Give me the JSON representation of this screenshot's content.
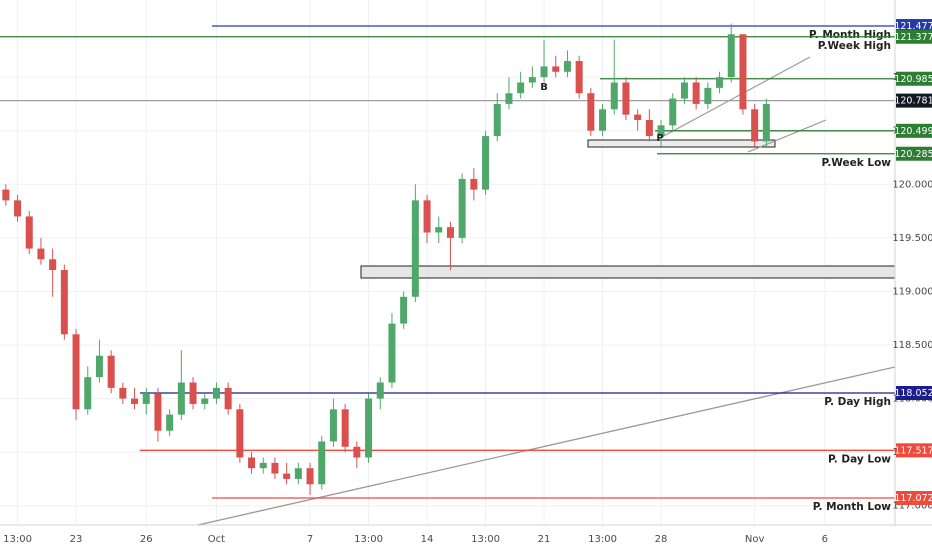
{
  "chart_data": {
    "type": "candlestick",
    "categories": [
      null,
      "13:00",
      null,
      null,
      null,
      null,
      "23",
      null,
      null,
      null,
      null,
      null,
      "26",
      null,
      null,
      null,
      null,
      null,
      "Oct",
      null,
      null,
      null,
      null,
      null,
      null,
      null,
      "7",
      null,
      null,
      null,
      null,
      "13:00",
      null,
      null,
      null,
      null,
      "14",
      null,
      null,
      null,
      null,
      "13:00",
      null,
      null,
      null,
      null,
      "21",
      null,
      null,
      null,
      null,
      "13:00",
      null,
      null,
      null,
      null,
      "28",
      null,
      null,
      null,
      null,
      null,
      null,
      null,
      "Nov",
      null,
      null,
      null,
      null,
      null,
      "6",
      null,
      null,
      null,
      null,
      null
    ],
    "open": [
      119.95,
      119.85,
      119.7,
      119.4,
      119.3,
      119.2,
      118.6,
      117.9,
      118.2,
      118.4,
      118.1,
      118.0,
      117.95,
      118.05,
      117.7,
      117.85,
      118.15,
      117.95,
      118.0,
      118.1,
      117.9,
      117.45,
      117.35,
      117.4,
      117.3,
      117.25,
      117.35,
      117.2,
      117.6,
      117.9,
      117.55,
      117.45,
      118.0,
      118.15,
      118.7,
      118.95,
      119.85,
      119.55,
      119.6,
      119.5,
      120.05,
      119.95,
      120.45,
      120.75,
      120.85,
      120.95,
      121.0,
      121.1,
      121.05,
      121.15,
      120.85,
      120.5,
      120.7,
      120.95,
      120.65,
      120.6,
      120.45,
      120.55,
      120.8,
      120.95,
      120.75,
      120.9,
      121.0,
      121.4,
      120.7,
      120.4,
      null,
      null,
      null,
      null,
      null,
      null,
      null,
      null,
      null,
      null
    ],
    "high": [
      120.0,
      119.9,
      119.75,
      119.5,
      119.4,
      119.25,
      118.65,
      118.3,
      118.55,
      118.45,
      118.15,
      118.1,
      118.1,
      118.1,
      117.9,
      118.45,
      118.2,
      118.05,
      118.15,
      118.15,
      117.95,
      117.5,
      117.45,
      117.45,
      117.4,
      117.4,
      117.4,
      117.65,
      118.0,
      117.95,
      117.6,
      118.05,
      118.2,
      118.8,
      119.0,
      120.0,
      119.9,
      119.7,
      119.65,
      120.1,
      120.15,
      120.5,
      120.85,
      121.0,
      121.05,
      121.1,
      121.35,
      121.2,
      121.25,
      121.2,
      120.9,
      120.75,
      121.35,
      121.0,
      120.7,
      120.7,
      120.6,
      120.85,
      121.0,
      121.0,
      120.95,
      121.05,
      121.5,
      121.4,
      120.75,
      120.8,
      null,
      null,
      null,
      null,
      null,
      null,
      null,
      null,
      null,
      null
    ],
    "low": [
      119.8,
      119.65,
      119.35,
      119.25,
      118.95,
      118.55,
      117.8,
      117.85,
      118.15,
      118.05,
      117.95,
      117.9,
      117.85,
      117.6,
      117.65,
      117.8,
      117.9,
      117.9,
      117.95,
      117.85,
      117.4,
      117.3,
      117.3,
      117.25,
      117.2,
      117.2,
      117.1,
      117.15,
      117.55,
      117.5,
      117.35,
      117.4,
      117.9,
      118.1,
      118.65,
      118.9,
      119.45,
      119.45,
      119.2,
      119.45,
      119.85,
      119.9,
      120.4,
      120.7,
      120.8,
      120.9,
      120.95,
      121.0,
      121.0,
      120.8,
      120.45,
      120.45,
      120.65,
      120.6,
      120.5,
      120.4,
      120.35,
      120.5,
      120.75,
      120.7,
      120.7,
      120.85,
      120.95,
      120.65,
      120.35,
      120.35,
      null,
      null,
      null,
      null,
      null,
      null,
      null,
      null,
      null,
      null
    ],
    "close": [
      119.85,
      119.7,
      119.4,
      119.3,
      119.2,
      118.6,
      117.9,
      118.2,
      118.4,
      118.1,
      118.0,
      117.95,
      118.05,
      117.7,
      117.85,
      118.15,
      117.95,
      118.0,
      118.1,
      117.9,
      117.45,
      117.35,
      117.4,
      117.3,
      117.25,
      117.35,
      117.2,
      117.6,
      117.9,
      117.55,
      117.45,
      118.0,
      118.15,
      118.7,
      118.95,
      119.85,
      119.55,
      119.6,
      119.5,
      120.05,
      119.95,
      120.45,
      120.75,
      120.85,
      120.95,
      121.0,
      121.1,
      121.05,
      121.15,
      120.85,
      120.5,
      120.7,
      120.95,
      120.65,
      120.6,
      120.45,
      120.55,
      120.8,
      120.95,
      120.75,
      120.9,
      121.0,
      121.4,
      120.7,
      120.4,
      120.75,
      null,
      null,
      null,
      null,
      null,
      null,
      null,
      null,
      null,
      null
    ],
    "up_color": "#4fa86a",
    "down_color": "#d9504f",
    "ylim": [
      116.82,
      121.72
    ],
    "yticks": [
      {
        "value": 117,
        "label": "117.000"
      },
      {
        "value": 117.5,
        "label": "117.500"
      },
      {
        "value": 118,
        "label": "118.000"
      },
      {
        "value": 118.5,
        "label": "118.500"
      },
      {
        "value": 119,
        "label": "119.000"
      },
      {
        "value": 119.5,
        "label": "119.500"
      },
      {
        "value": 120,
        "label": "120.000"
      },
      {
        "value": 120.5,
        "label": "120.500"
      },
      {
        "value": 121,
        "label": "121.000"
      }
    ],
    "grid": true,
    "levels": [
      {
        "value": 121.477,
        "label": "P. Month High",
        "color": "#2639a8"
      },
      {
        "value": 121.377,
        "label": "P.Week High",
        "color": "#2e7d32"
      },
      {
        "value": 120.985,
        "color": "#2e7d32"
      },
      {
        "value": 120.781,
        "color": "#9e9e9e"
      },
      {
        "value": 120.499,
        "color": "#2e7d32"
      },
      {
        "value": 120.285,
        "label": "P.Week Low",
        "color": "#2e7d32"
      },
      {
        "value": 118.052,
        "label": "P. Day High",
        "color": "#1c1c8c"
      },
      {
        "value": 117.517,
        "label": "P. Day Low",
        "color": "#f04a3a"
      },
      {
        "value": 117.072,
        "label": "P. Month Low",
        "color": "#f04a3a"
      }
    ],
    "annotations": [
      "B",
      "P"
    ]
  }
}
